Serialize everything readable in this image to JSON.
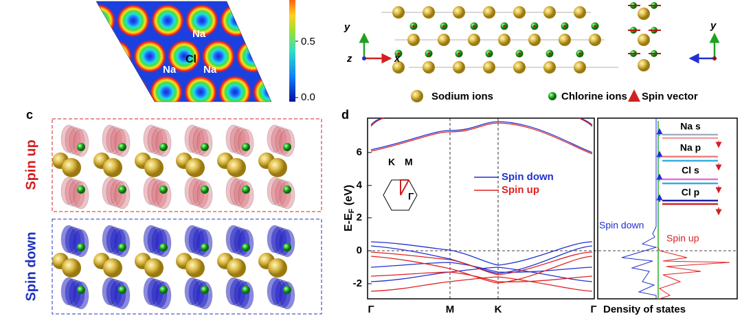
{
  "panel_a": {
    "labels": [
      "Na",
      "Cl",
      "Na",
      "Na"
    ],
    "colorbar_ticks": [
      "0.5",
      "0.0"
    ]
  },
  "panel_b": {
    "axes_left": [
      "y",
      "z",
      "x"
    ],
    "axes_right": [
      "y"
    ],
    "legend": [
      "Sodium ions",
      "Chlorine ions",
      "Spin vector"
    ]
  },
  "panel_c": {
    "label": "c",
    "spin_up": "Spin up",
    "spin_down": "Spin down"
  },
  "panel_d": {
    "label": "d",
    "y_axis_label": {
      "main": "E-E",
      "sub": "F",
      "unit": " (eV)"
    },
    "yticks": [
      "-2",
      "0",
      "2",
      "4",
      "6"
    ],
    "xticks": [
      "Γ",
      "M",
      "K",
      "Γ"
    ],
    "bz_labels": [
      "K",
      "M",
      "Γ"
    ],
    "legend": [
      "Spin down",
      "Spin up"
    ],
    "dos_xlabel": "Density of states",
    "dos_legend": [
      "Na s",
      "Na p",
      "Cl s",
      "Cl p"
    ],
    "dos_spin": [
      "Spin down",
      "Spin up"
    ]
  }
}
